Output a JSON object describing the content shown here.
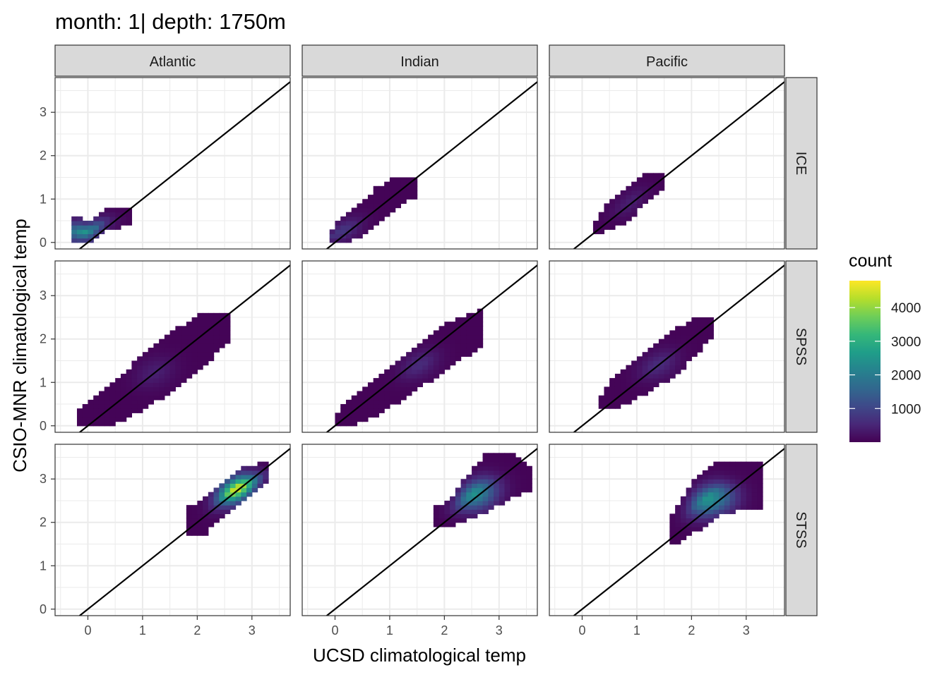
{
  "chart_data": {
    "type": "heatmap",
    "title": "month: 1| depth: 1750m",
    "xlabel": "UCSD climatological temp",
    "ylabel": "CSIO-MNR climatological temp",
    "xlim": [
      -0.6,
      3.7
    ],
    "ylim": [
      -0.15,
      3.8
    ],
    "x_ticks": [
      0,
      1,
      2,
      3
    ],
    "y_ticks": [
      0,
      1,
      2,
      3
    ],
    "x_tick_labels": [
      "0",
      "1",
      "2",
      "3"
    ],
    "y_tick_labels": [
      "0",
      "1",
      "2",
      "3"
    ],
    "reference_line": "y = x",
    "grid": true,
    "facet_columns": [
      "Atlantic",
      "Indian",
      "Pacific"
    ],
    "facet_rows": [
      "ICE",
      "SPSS",
      "STSS"
    ],
    "legend": {
      "title": "count",
      "placement": "right",
      "min": 0,
      "max": 4800,
      "breaks": [
        1000,
        2000,
        3000,
        4000
      ],
      "break_labels": [
        "1000",
        "2000",
        "3000",
        "4000"
      ],
      "palette": [
        "#440154",
        "#482878",
        "#3e4989",
        "#31688e",
        "#26828e",
        "#1f9e89",
        "#35b779",
        "#6ece58",
        "#b5de2b",
        "#fde725"
      ]
    },
    "panels": [
      {
        "column": "Atlantic",
        "row": "ICE",
        "band": [
          [
            -0.35,
            0.0,
            0.1
          ],
          [
            -0.25,
            0.0,
            0.55
          ],
          [
            0.0,
            0.05,
            0.45
          ],
          [
            0.4,
            0.35,
            0.8
          ],
          [
            0.75,
            0.45,
            0.8
          ]
        ],
        "peak": {
          "x": -0.05,
          "y": 0.2,
          "count": 2500
        }
      },
      {
        "column": "Indian",
        "row": "ICE",
        "band": [
          [
            -0.1,
            0.0,
            0.2
          ],
          [
            0.1,
            0.0,
            0.5
          ],
          [
            0.5,
            0.2,
            0.95
          ],
          [
            0.9,
            0.6,
            1.35
          ],
          [
            1.2,
            0.9,
            1.5
          ],
          [
            1.5,
            1.1,
            1.5
          ]
        ],
        "peak": {
          "x": 0.1,
          "y": 0.25,
          "count": 800
        }
      },
      {
        "column": "Pacific",
        "row": "ICE",
        "band": [
          [
            0.25,
            0.25,
            0.45
          ],
          [
            0.4,
            0.3,
            0.75
          ],
          [
            0.8,
            0.5,
            1.2
          ],
          [
            1.1,
            0.9,
            1.55
          ],
          [
            1.5,
            1.3,
            1.6
          ]
        ],
        "peak": {
          "x": 0.9,
          "y": 0.9,
          "count": 400
        }
      },
      {
        "column": "Atlantic",
        "row": "SPSS",
        "band": [
          [
            -0.25,
            0.0,
            0.2
          ],
          [
            0.0,
            0.0,
            0.5
          ],
          [
            0.5,
            0.1,
            1.0
          ],
          [
            1.0,
            0.4,
            1.6
          ],
          [
            1.5,
            0.8,
            2.1
          ],
          [
            2.0,
            1.3,
            2.5
          ],
          [
            2.6,
            2.0,
            2.55
          ]
        ],
        "peak": {
          "x": 1.2,
          "y": 1.25,
          "count": 400
        }
      },
      {
        "column": "Indian",
        "row": "SPSS",
        "band": [
          [
            0.0,
            0.0,
            0.2
          ],
          [
            0.2,
            0.0,
            0.5
          ],
          [
            0.8,
            0.3,
            1.1
          ],
          [
            1.4,
            0.8,
            1.7
          ],
          [
            2.0,
            1.3,
            2.3
          ],
          [
            2.7,
            1.9,
            2.65
          ]
        ],
        "peak": {
          "x": 1.5,
          "y": 1.45,
          "count": 600
        }
      },
      {
        "column": "Pacific",
        "row": "SPSS",
        "band": [
          [
            0.35,
            0.4,
            0.65
          ],
          [
            0.6,
            0.45,
            1.1
          ],
          [
            1.2,
            0.8,
            1.7
          ],
          [
            1.7,
            1.2,
            2.2
          ],
          [
            2.1,
            1.7,
            2.45
          ],
          [
            2.4,
            2.1,
            2.45
          ]
        ],
        "peak": {
          "x": 1.4,
          "y": 1.4,
          "count": 600
        }
      },
      {
        "column": "Atlantic",
        "row": "STSS",
        "band": [
          [
            1.8,
            1.7,
            2.3
          ],
          [
            2.1,
            1.7,
            2.5
          ],
          [
            2.4,
            2.15,
            2.85
          ],
          [
            2.8,
            2.5,
            3.2
          ],
          [
            3.3,
            3.0,
            3.35
          ]
        ],
        "peak": {
          "x": 2.75,
          "y": 2.75,
          "count": 4800
        }
      },
      {
        "column": "Indian",
        "row": "STSS",
        "band": [
          [
            1.8,
            1.9,
            2.3
          ],
          [
            2.1,
            1.95,
            2.5
          ],
          [
            2.4,
            2.1,
            3.0
          ],
          [
            2.8,
            2.3,
            3.6
          ],
          [
            3.2,
            2.6,
            3.6
          ],
          [
            3.55,
            2.8,
            3.3
          ]
        ],
        "peak": {
          "x": 2.6,
          "y": 2.6,
          "count": 2600
        }
      },
      {
        "column": "Pacific",
        "row": "STSS",
        "band": [
          [
            1.6,
            1.55,
            2.1
          ],
          [
            1.8,
            1.6,
            2.4
          ],
          [
            2.1,
            1.85,
            3.0
          ],
          [
            2.5,
            2.2,
            3.4
          ],
          [
            3.2,
            2.4,
            3.4
          ],
          [
            3.3,
            2.4,
            3.4
          ]
        ],
        "peak": {
          "x": 2.4,
          "y": 2.45,
          "count": 2900
        }
      }
    ]
  }
}
